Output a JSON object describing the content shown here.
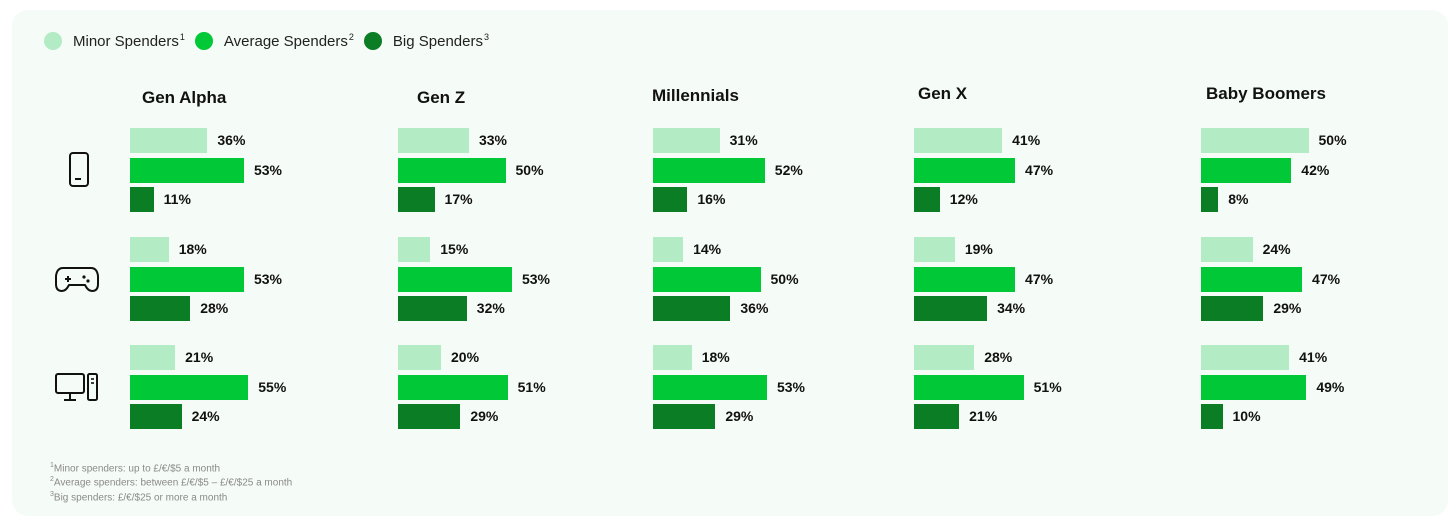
{
  "legend": [
    {
      "label": "Minor Spenders",
      "mark": "1",
      "color": "#b3ebc5"
    },
    {
      "label": "Average Spenders",
      "mark": "2",
      "color": "#00c837"
    },
    {
      "label": "Big Spenders",
      "mark": "3",
      "color": "#0a7d25"
    }
  ],
  "categories": [
    {
      "icon": "smartphone-icon"
    },
    {
      "icon": "gamepad-icon"
    },
    {
      "icon": "desktop-computer-icon"
    }
  ],
  "footnotes": [
    {
      "mark": "1",
      "text": "Minor spenders: up to £/€/$5 a month"
    },
    {
      "mark": "2",
      "text": "Average spenders: between £/€/$5 – £/€/$25 a month"
    },
    {
      "mark": "3",
      "text": "Big spenders: £/€/$25 or more a month"
    }
  ],
  "chart_data": {
    "type": "bar",
    "orientation": "horizontal",
    "series_names": [
      "Minor Spenders",
      "Average Spenders",
      "Big Spenders"
    ],
    "colors": [
      "#b3ebc5",
      "#00c837",
      "#0a7d25"
    ],
    "unit": "%",
    "groups": [
      {
        "name": "Gen Alpha",
        "values": [
          [
            36,
            53,
            11
          ],
          [
            18,
            53,
            28
          ],
          [
            21,
            55,
            24
          ]
        ]
      },
      {
        "name": "Gen Z",
        "values": [
          [
            33,
            50,
            17
          ],
          [
            15,
            53,
            32
          ],
          [
            20,
            51,
            29
          ]
        ]
      },
      {
        "name": "Millennials",
        "values": [
          [
            31,
            52,
            16
          ],
          [
            14,
            50,
            36
          ],
          [
            18,
            53,
            29
          ]
        ]
      },
      {
        "name": "Gen X",
        "values": [
          [
            41,
            47,
            12
          ],
          [
            19,
            47,
            34
          ],
          [
            28,
            51,
            21
          ]
        ]
      },
      {
        "name": "Baby Boomers",
        "values": [
          [
            50,
            42,
            8
          ],
          [
            24,
            47,
            29
          ],
          [
            41,
            49,
            10
          ]
        ]
      }
    ]
  }
}
